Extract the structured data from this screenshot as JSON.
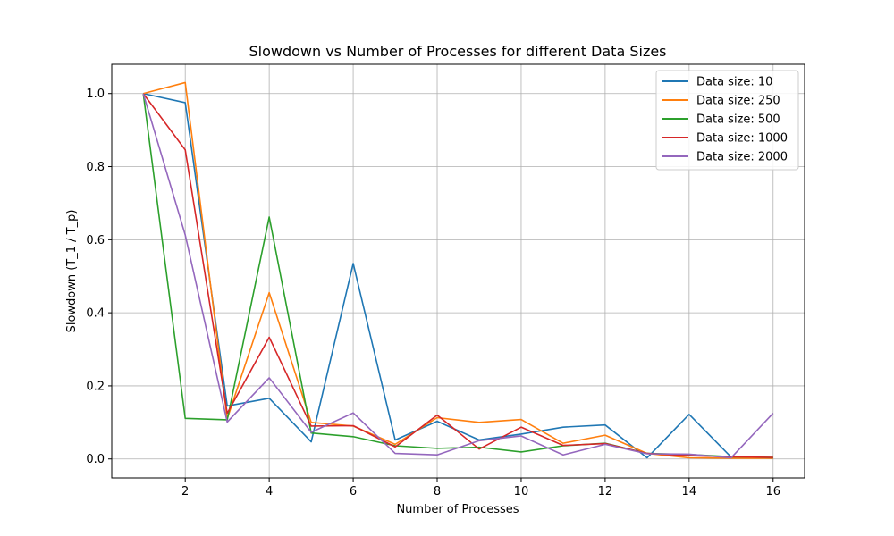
{
  "chart_data": {
    "type": "line",
    "title": "Slowdown vs Number of Processes for different Data Sizes",
    "xlabel": "Number of Processes",
    "ylabel": "Slowdown (T_1 / T_p)",
    "xlim": [
      0.25,
      16.75
    ],
    "ylim": [
      -0.052,
      1.08
    ],
    "xticks": [
      2,
      4,
      6,
      8,
      10,
      12,
      14,
      16
    ],
    "yticks": [
      0.0,
      0.2,
      0.4,
      0.6,
      0.8,
      1.0
    ],
    "ytick_labels": [
      "0.0",
      "0.2",
      "0.4",
      "0.6",
      "0.8",
      "1.0"
    ],
    "grid": true,
    "legend_position": "top-right",
    "x": [
      1,
      2,
      3,
      4,
      5,
      6,
      7,
      8,
      9,
      10,
      11,
      12,
      13,
      14,
      15,
      16
    ],
    "series": [
      {
        "name": "Data size: 10",
        "color": "#1f77b4",
        "values": [
          1.0,
          0.975,
          0.145,
          0.166,
          0.047,
          0.535,
          0.052,
          0.103,
          0.052,
          0.068,
          0.087,
          0.093,
          0.003,
          0.122,
          0.005,
          0.002
        ]
      },
      {
        "name": "Data size: 250",
        "color": "#ff7f0e",
        "values": [
          1.0,
          1.03,
          0.11,
          0.455,
          0.1,
          0.09,
          0.04,
          0.113,
          0.1,
          0.108,
          0.043,
          0.065,
          0.015,
          0.003,
          0.002,
          0.002
        ]
      },
      {
        "name": "Data size: 500",
        "color": "#2ca02c",
        "values": [
          1.0,
          0.111,
          0.107,
          0.662,
          0.071,
          0.061,
          0.036,
          0.029,
          0.032,
          0.019,
          0.036,
          0.043,
          0.015,
          0.012,
          0.006,
          0.004
        ]
      },
      {
        "name": "Data size: 1000",
        "color": "#d62728",
        "values": [
          1.0,
          0.846,
          0.125,
          0.333,
          0.09,
          0.091,
          0.033,
          0.12,
          0.027,
          0.087,
          0.037,
          0.042,
          0.015,
          0.009,
          0.006,
          0.004
        ]
      },
      {
        "name": "Data size: 2000",
        "color": "#9467bd",
        "values": [
          1.0,
          0.613,
          0.101,
          0.222,
          0.073,
          0.126,
          0.015,
          0.011,
          0.05,
          0.063,
          0.011,
          0.04,
          0.014,
          0.013,
          0.003,
          0.125
        ]
      }
    ]
  }
}
